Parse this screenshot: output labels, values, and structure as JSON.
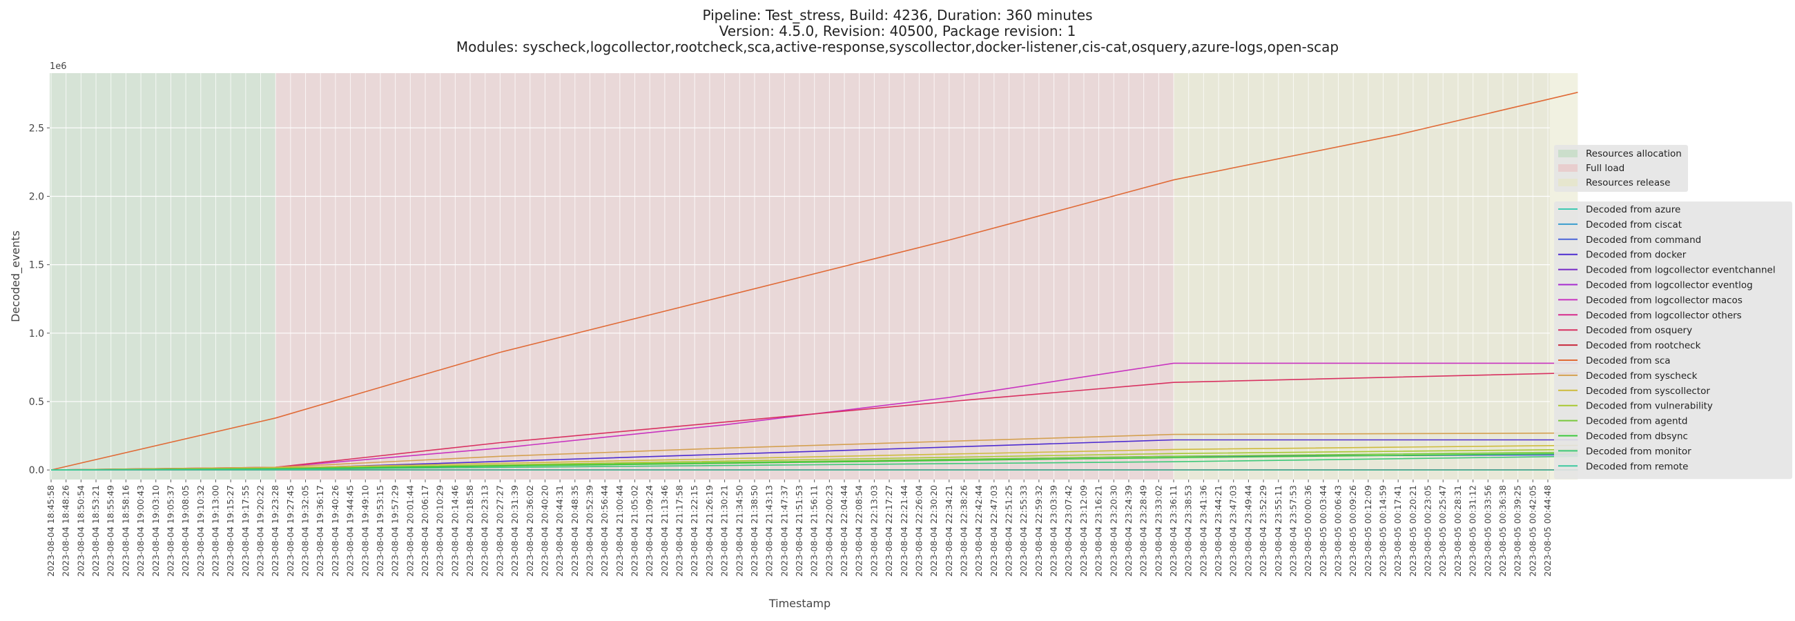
{
  "header": {
    "line1": "Pipeline: Test_stress, Build: 4236, Duration: 360 minutes",
    "line2": "Version: 4.5.0, Revision: 40500, Package revision: 1",
    "line3": "Modules: syscheck,logcollector,rootcheck,sca,active-response,syscollector,docker-listener,cis-cat,osquery,azure-logs,open-scap"
  },
  "chart_data": {
    "type": "line",
    "title": "Pipeline: Test_stress, Build: 4236, Duration: 360 minutes\nVersion: 4.5.0, Revision: 40500, Package revision: 1\nModules: syscheck,logcollector,rootcheck,sca,active-response,syscollector,docker-listener,cis-cat,osquery,azure-logs,open-scap",
    "xlabel": "Timestamp",
    "ylabel": "Decoded_events",
    "y_scale_label": "1e6",
    "ylim": [
      -0.07,
      2.9
    ],
    "yticks": [
      "0.0",
      "0.5",
      "1.0",
      "1.5",
      "2.0",
      "2.5"
    ],
    "grid": true,
    "legend_position": "center-right",
    "x_tick_labels": [
      "2023-08-04 18:45:58",
      "2023-08-04 18:48:26",
      "2023-08-04 18:50:54",
      "2023-08-04 18:53:21",
      "2023-08-04 18:55:49",
      "2023-08-04 18:58:16",
      "2023-08-04 19:00:43",
      "2023-08-04 19:03:10",
      "2023-08-04 19:05:37",
      "2023-08-04 19:08:05",
      "2023-08-04 19:10:32",
      "2023-08-04 19:13:00",
      "2023-08-04 19:15:27",
      "2023-08-04 19:17:55",
      "2023-08-04 19:20:22",
      "2023-08-04 19:23:28",
      "2023-08-04 19:27:45",
      "2023-08-04 19:32:05",
      "2023-08-04 19:36:17",
      "2023-08-04 19:40:26",
      "2023-08-04 19:44:45",
      "2023-08-04 19:49:10",
      "2023-08-04 19:53:15",
      "2023-08-04 19:57:29",
      "2023-08-04 20:01:44",
      "2023-08-04 20:06:17",
      "2023-08-04 20:10:29",
      "2023-08-04 20:14:46",
      "2023-08-04 20:18:58",
      "2023-08-04 20:23:13",
      "2023-08-04 20:27:27",
      "2023-08-04 20:31:39",
      "2023-08-04 20:36:02",
      "2023-08-04 20:40:20",
      "2023-08-04 20:44:31",
      "2023-08-04 20:48:35",
      "2023-08-04 20:52:39",
      "2023-08-04 20:56:44",
      "2023-08-04 21:00:44",
      "2023-08-04 21:05:02",
      "2023-08-04 21:09:24",
      "2023-08-04 21:13:46",
      "2023-08-04 21:17:58",
      "2023-08-04 21:22:15",
      "2023-08-04 21:26:19",
      "2023-08-04 21:30:21",
      "2023-08-04 21:34:50",
      "2023-08-04 21:38:50",
      "2023-08-04 21:43:13",
      "2023-08-04 21:47:37",
      "2023-08-04 21:51:53",
      "2023-08-04 21:56:11",
      "2023-08-04 22:00:23",
      "2023-08-04 22:04:44",
      "2023-08-04 22:08:54",
      "2023-08-04 22:13:03",
      "2023-08-04 22:17:27",
      "2023-08-04 22:21:44",
      "2023-08-04 22:26:04",
      "2023-08-04 22:30:20",
      "2023-08-04 22:34:21",
      "2023-08-04 22:38:26",
      "2023-08-04 22:42:44",
      "2023-08-04 22:47:03",
      "2023-08-04 22:51:25",
      "2023-08-04 22:55:33",
      "2023-08-04 22:59:32",
      "2023-08-04 23:03:39",
      "2023-08-04 23:07:42",
      "2023-08-04 23:12:09",
      "2023-08-04 23:16:21",
      "2023-08-04 23:20:30",
      "2023-08-04 23:24:39",
      "2023-08-04 23:28:49",
      "2023-08-04 23:33:02",
      "2023-08-04 23:36:11",
      "2023-08-04 23:38:53",
      "2023-08-04 23:41:36",
      "2023-08-04 23:44:21",
      "2023-08-04 23:47:03",
      "2023-08-04 23:49:44",
      "2023-08-04 23:52:29",
      "2023-08-04 23:55:11",
      "2023-08-04 23:57:53",
      "2023-08-05 00:00:36",
      "2023-08-05 00:03:44",
      "2023-08-05 00:06:43",
      "2023-08-05 00:09:26",
      "2023-08-05 00:12:09",
      "2023-08-05 00:14:59",
      "2023-08-05 00:17:41",
      "2023-08-05 00:20:21",
      "2023-08-05 00:23:05",
      "2023-08-05 00:25:47",
      "2023-08-05 00:28:31",
      "2023-08-05 00:31:12",
      "2023-08-05 00:33:56",
      "2023-08-05 00:36:38",
      "2023-08-05 00:39:25",
      "2023-08-05 00:42:05",
      "2023-08-05 00:44:48"
    ],
    "phases": [
      {
        "name": "Resources allocation",
        "start_tick": 0,
        "end_tick": 15,
        "color": "#c4dcc4"
      },
      {
        "name": "Full load",
        "start_tick": 15,
        "end_tick": 75,
        "color": "#e8c8c8"
      },
      {
        "name": "Resources release",
        "start_tick": 75,
        "end_tick": 102,
        "color": "#e6e6c8"
      }
    ],
    "series": [
      {
        "name": "Decoded from azure",
        "color": "#3ec9b2",
        "points": [
          [
            0,
            0.0
          ],
          [
            102,
            0.0
          ]
        ]
      },
      {
        "name": "Decoded from ciscat",
        "color": "#3a9cce",
        "points": [
          [
            0,
            0.0
          ],
          [
            102,
            0.0
          ]
        ]
      },
      {
        "name": "Decoded from command",
        "color": "#4a64d8",
        "points": [
          [
            0,
            0.0
          ],
          [
            15,
            0.005
          ],
          [
            75,
            0.1
          ],
          [
            102,
            0.11
          ]
        ]
      },
      {
        "name": "Decoded from docker",
        "color": "#4c2bd0",
        "points": [
          [
            0,
            0.0
          ],
          [
            15,
            0.01
          ],
          [
            75,
            0.22
          ],
          [
            102,
            0.22
          ]
        ]
      },
      {
        "name": "Decoded from logcollector eventchannel",
        "color": "#7628c6",
        "points": [
          [
            0,
            0.0
          ],
          [
            102,
            0.0
          ]
        ]
      },
      {
        "name": "Decoded from logcollector eventlog",
        "color": "#a62ad0",
        "points": [
          [
            0,
            0.0
          ],
          [
            102,
            0.0
          ]
        ]
      },
      {
        "name": "Decoded from logcollector macos",
        "color": "#c832c0",
        "points": [
          [
            0,
            0.0
          ],
          [
            15,
            0.02
          ],
          [
            30,
            0.16
          ],
          [
            45,
            0.33
          ],
          [
            60,
            0.53
          ],
          [
            75,
            0.78
          ],
          [
            102,
            0.78
          ]
        ]
      },
      {
        "name": "Decoded from logcollector others",
        "color": "#d62a8c",
        "points": [
          [
            0,
            0.0
          ],
          [
            102,
            0.0
          ]
        ]
      },
      {
        "name": "Decoded from osquery",
        "color": "#d83060",
        "points": [
          [
            0,
            0.0
          ],
          [
            15,
            0.02
          ],
          [
            30,
            0.2
          ],
          [
            45,
            0.35
          ],
          [
            60,
            0.5
          ],
          [
            75,
            0.64
          ],
          [
            102,
            0.71
          ]
        ]
      },
      {
        "name": "Decoded from rootcheck",
        "color": "#c8283c",
        "points": [
          [
            0,
            0.0
          ],
          [
            102,
            0.0
          ]
        ]
      },
      {
        "name": "Decoded from sca",
        "color": "#e06a36",
        "points": [
          [
            0,
            0.0
          ],
          [
            15,
            0.38
          ],
          [
            30,
            0.86
          ],
          [
            45,
            1.27
          ],
          [
            60,
            1.68
          ],
          [
            75,
            2.12
          ],
          [
            90,
            2.45
          ],
          [
            102,
            2.76
          ]
        ]
      },
      {
        "name": "Decoded from syscheck",
        "color": "#d4a050",
        "points": [
          [
            0,
            0.0
          ],
          [
            15,
            0.02
          ],
          [
            30,
            0.1
          ],
          [
            45,
            0.16
          ],
          [
            60,
            0.21
          ],
          [
            75,
            0.26
          ],
          [
            102,
            0.27
          ]
        ]
      },
      {
        "name": "Decoded from syscollector",
        "color": "#cdbb3c",
        "points": [
          [
            0,
            0.0
          ],
          [
            15,
            0.015
          ],
          [
            75,
            0.15
          ],
          [
            102,
            0.18
          ]
        ]
      },
      {
        "name": "Decoded from vulnerability",
        "color": "#a8c832",
        "points": [
          [
            0,
            0.0
          ],
          [
            15,
            0.01
          ],
          [
            75,
            0.12
          ],
          [
            102,
            0.15
          ]
        ]
      },
      {
        "name": "Decoded from agentd",
        "color": "#78c83c",
        "points": [
          [
            0,
            0.0
          ],
          [
            15,
            0.01
          ],
          [
            75,
            0.1
          ],
          [
            102,
            0.13
          ]
        ]
      },
      {
        "name": "Decoded from dbsync",
        "color": "#3cc83c",
        "points": [
          [
            0,
            0.0
          ],
          [
            15,
            0.008
          ],
          [
            75,
            0.09
          ],
          [
            102,
            0.12
          ]
        ]
      },
      {
        "name": "Decoded from monitor",
        "color": "#3cc878",
        "points": [
          [
            0,
            0.0
          ],
          [
            15,
            0.005
          ],
          [
            75,
            0.06
          ],
          [
            102,
            0.1
          ]
        ]
      },
      {
        "name": "Decoded from remote",
        "color": "#3cc8a0",
        "points": [
          [
            0,
            0.0
          ],
          [
            102,
            0.0
          ]
        ]
      }
    ]
  }
}
